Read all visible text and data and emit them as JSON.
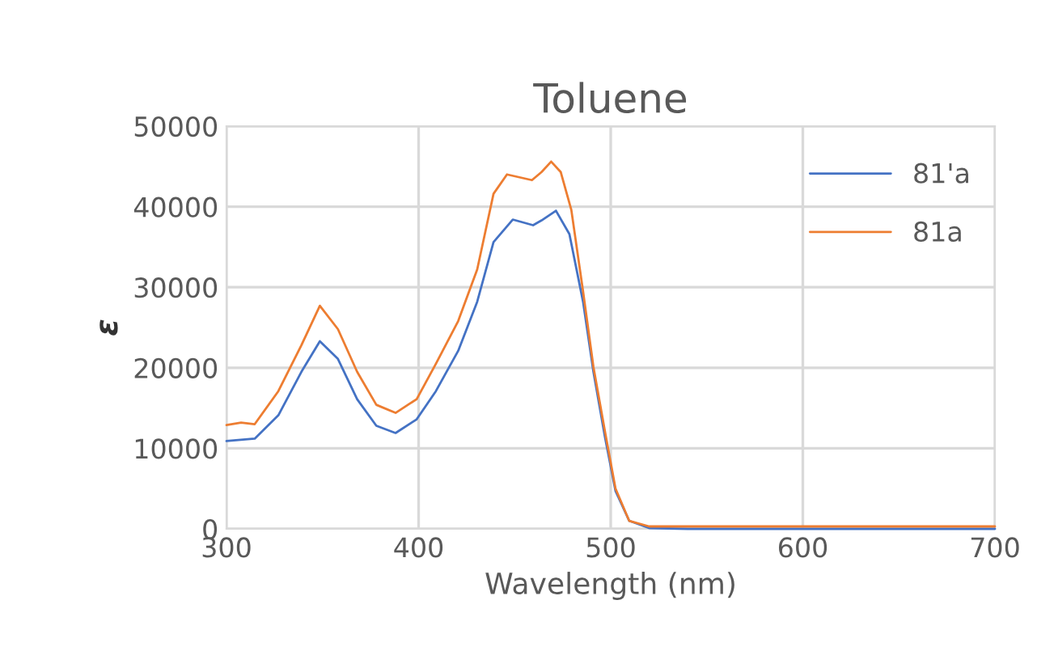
{
  "chart_data": {
    "type": "line",
    "title": "Toluene",
    "xlabel": "Wavelength (nm)",
    "ylabel": "ε",
    "xlim": [
      300,
      700
    ],
    "xticks": [
      300,
      400,
      500,
      600,
      700
    ],
    "ylim": [
      0,
      50000
    ],
    "yticks": [
      0,
      10000,
      20000,
      30000,
      40000,
      50000
    ],
    "grid": true,
    "legend": "top right",
    "marker": "none",
    "line_style": "solid",
    "series": [
      {
        "name": "81'a",
        "color": "#4472c4",
        "x": [
          300,
          314.7,
          327,
          339,
          348.6,
          358,
          368,
          378,
          388,
          399,
          409,
          420.6,
          430.5,
          439,
          449,
          459.6,
          464,
          471.5,
          478.5,
          485.6,
          491,
          497,
          502.5,
          509.6,
          520,
          540,
          600,
          700
        ],
        "values": [
          10900,
          11200,
          14100,
          19500,
          23300,
          21100,
          16100,
          12800,
          11900,
          13600,
          17100,
          22100,
          28200,
          35600,
          38400,
          37700,
          38300,
          39500,
          36600,
          28200,
          19500,
          11400,
          4700,
          1000,
          100,
          0,
          0,
          0
        ]
      },
      {
        "name": "81a",
        "color": "#ed7d31",
        "x": [
          300,
          307.6,
          314.7,
          327,
          339,
          348.6,
          358,
          368,
          378,
          388,
          399,
          409,
          420.6,
          430.5,
          439,
          446,
          459,
          464,
          469,
          474,
          479.5,
          485.6,
          491,
          497,
          502.5,
          509.6,
          520,
          540,
          600,
          700
        ],
        "values": [
          12900,
          13200,
          13000,
          17100,
          22800,
          27700,
          24800,
          19500,
          15400,
          14400,
          16100,
          20500,
          25800,
          32200,
          41600,
          44000,
          43300,
          44300,
          45600,
          44300,
          39600,
          29500,
          20100,
          12100,
          5000,
          1000,
          300,
          300,
          300,
          300
        ]
      }
    ]
  }
}
